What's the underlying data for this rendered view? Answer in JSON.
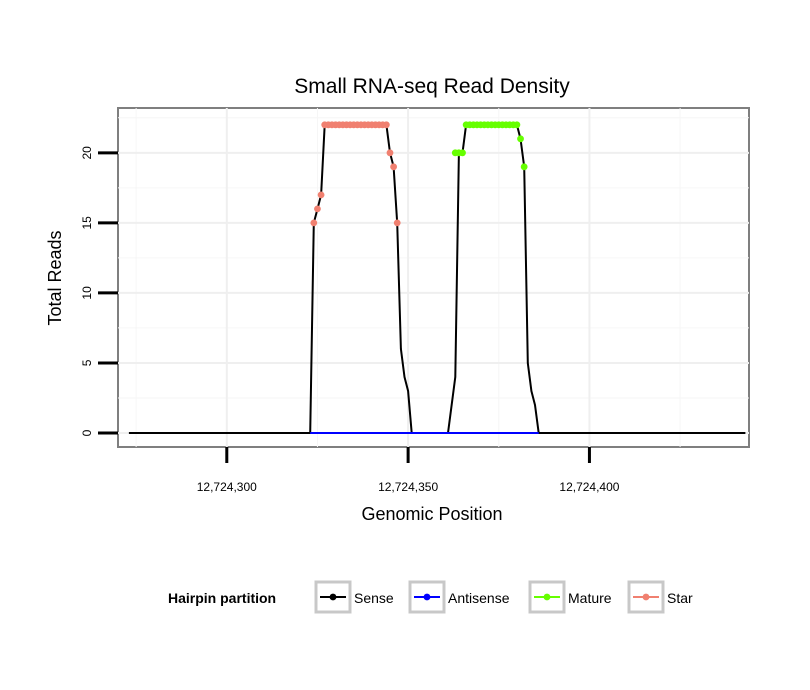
{
  "chart_data": {
    "type": "line",
    "title": "Small RNA-seq Read Density",
    "xlabel": "Genomic Position",
    "ylabel": "Total Reads",
    "xlim": [
      12724270,
      12724444
    ],
    "ylim": [
      -1.0,
      23.2
    ],
    "x_ticks": [
      12724300,
      12724350,
      12724400
    ],
    "x_tick_labels": [
      "12,724,300",
      "12,724,350",
      "12,724,400"
    ],
    "y_ticks": [
      0,
      5,
      10,
      15,
      20
    ],
    "y_tick_labels": [
      "0",
      "5",
      "10",
      "15",
      "20"
    ],
    "grid": true,
    "legend": {
      "title": "Hairpin partition",
      "position": "bottom",
      "entries": [
        "Sense",
        "Antisense",
        "Mature",
        "Star"
      ]
    },
    "series": [
      {
        "name": "Sense",
        "color": "#000000",
        "x": [
          12724273,
          12724323,
          12724324,
          12724325,
          12724326,
          12724327,
          12724328,
          12724344,
          12724345,
          12724346,
          12724347,
          12724348,
          12724349,
          12724350,
          12724351,
          12724361,
          12724363,
          12724364,
          12724365,
          12724366,
          12724380,
          12724381,
          12724382,
          12724383,
          12724384,
          12724385,
          12724386,
          12724443
        ],
        "values": [
          0,
          0,
          15,
          16,
          17,
          22,
          22,
          22,
          20,
          19,
          15,
          6,
          4,
          3,
          0,
          0,
          4,
          20,
          20,
          22,
          22,
          21,
          19,
          5,
          3,
          2,
          0,
          0
        ]
      },
      {
        "name": "Antisense",
        "color": "#0000ff",
        "x": [
          12724323,
          12724386
        ],
        "values": [
          0,
          0
        ]
      },
      {
        "name": "Mature",
        "color": "#66ff00",
        "x": [
          12724363,
          12724364,
          12724365,
          12724366,
          12724367,
          12724368,
          12724369,
          12724370,
          12724371,
          12724372,
          12724373,
          12724374,
          12724375,
          12724376,
          12724377,
          12724378,
          12724379,
          12724380,
          12724381,
          12724382
        ],
        "values": [
          20,
          20,
          20,
          22,
          22,
          22,
          22,
          22,
          22,
          22,
          22,
          22,
          22,
          22,
          22,
          22,
          22,
          22,
          21,
          19
        ]
      },
      {
        "name": "Star",
        "color": "#f08070",
        "x": [
          12724324,
          12724325,
          12724326,
          12724327,
          12724328,
          12724329,
          12724330,
          12724331,
          12724332,
          12724333,
          12724334,
          12724335,
          12724336,
          12724337,
          12724338,
          12724339,
          12724340,
          12724341,
          12724342,
          12724343,
          12724344,
          12724345,
          12724346,
          12724347
        ],
        "values": [
          15,
          16,
          17,
          22,
          22,
          22,
          22,
          22,
          22,
          22,
          22,
          22,
          22,
          22,
          22,
          22,
          22,
          22,
          22,
          22,
          22,
          20,
          19,
          15
        ]
      }
    ]
  }
}
